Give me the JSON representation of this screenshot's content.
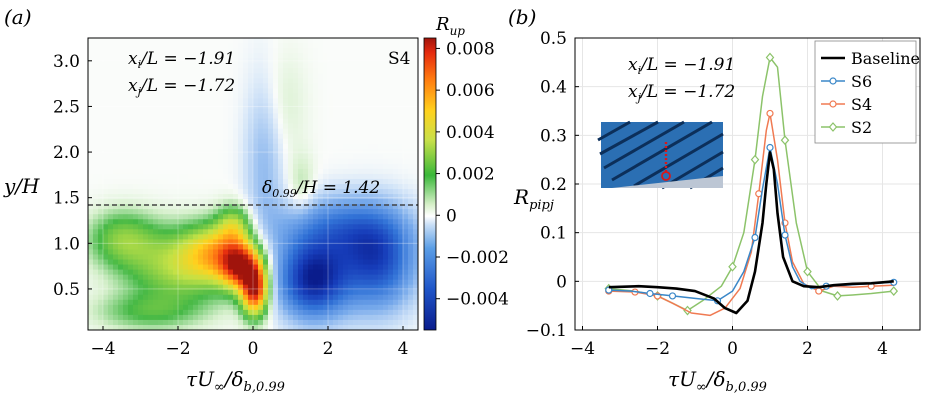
{
  "chart_data": [
    {
      "type": "heatmap",
      "panel_label": "(a)",
      "colorbar_title": "R",
      "colorbar_title_sub": "up",
      "colorbar_ticks": [
        "0.008",
        "0.006",
        "0.004",
        "0.002",
        "0",
        "−0.002",
        "−0.004"
      ],
      "colorbar_tick_values": [
        0.008,
        0.006,
        0.004,
        0.002,
        0,
        -0.002,
        -0.004
      ],
      "colorbar_range": [
        -0.0055,
        0.0085
      ],
      "xlabel": "τU∞/δb,0.99",
      "ylabel": "y/H",
      "xlim": [
        -4.4,
        4.4
      ],
      "ylim": [
        0.05,
        3.25
      ],
      "x_ticks": [
        "−4",
        "−2",
        "0",
        "2",
        "4"
      ],
      "x_tick_values": [
        -4,
        -2,
        0,
        2,
        4
      ],
      "y_ticks": [
        "0.5",
        "1.0",
        "1.5",
        "2.0",
        "2.5",
        "3.0"
      ],
      "y_tick_values": [
        0.5,
        1.0,
        1.5,
        2.0,
        2.5,
        3.0
      ],
      "annotations": {
        "xi_line": "x_i/L = −1.91",
        "xj_line": "x_j/L = −1.72",
        "case": "S4",
        "delta_line": "δ_0.99/H = 1.42"
      },
      "delta_level": 1.42,
      "field_features": [
        {
          "x": 0.05,
          "y": 0.5,
          "value": 0.0078,
          "sx": 0.35,
          "sy": 0.28
        },
        {
          "x": -0.35,
          "y": 0.75,
          "value": 0.006,
          "sx": 0.5,
          "sy": 0.25
        },
        {
          "x": -0.9,
          "y": 0.9,
          "value": 0.004,
          "sx": 0.9,
          "sy": 0.3
        },
        {
          "x": -2.0,
          "y": 0.75,
          "value": 0.0028,
          "sx": 1.4,
          "sy": 0.4
        },
        {
          "x": -3.5,
          "y": 1.05,
          "value": 0.0022,
          "sx": 0.9,
          "sy": 0.3
        },
        {
          "x": -0.5,
          "y": 1.2,
          "value": 0.0025,
          "sx": 0.45,
          "sy": 0.22
        },
        {
          "x": -2.8,
          "y": 0.25,
          "value": 0.0015,
          "sx": 1.4,
          "sy": 0.2
        },
        {
          "x": 1.6,
          "y": 0.6,
          "value": -0.0052,
          "sx": 0.9,
          "sy": 0.4
        },
        {
          "x": 3.3,
          "y": 0.8,
          "value": -0.004,
          "sx": 1.0,
          "sy": 0.5
        },
        {
          "x": 2.2,
          "y": 1.15,
          "value": -0.0025,
          "sx": 1.6,
          "sy": 0.35
        },
        {
          "x": 0.3,
          "y": 1.9,
          "value": -0.0012,
          "sx": 0.5,
          "sy": 0.9
        },
        {
          "x": 1.3,
          "y": 1.6,
          "value": 0.0008,
          "sx": 0.35,
          "sy": 0.35
        },
        {
          "x": 0.8,
          "y": 2.5,
          "value": 0.0005,
          "sx": 0.6,
          "sy": 0.6
        }
      ]
    },
    {
      "type": "line",
      "panel_label": "(b)",
      "xlabel": "τU∞/δb,0.99",
      "ylabel": "R",
      "ylabel_sub": "pipj",
      "xlim": [
        -4.2,
        5.0
      ],
      "ylim": [
        -0.1,
        0.5
      ],
      "x_ticks": [
        "−4",
        "−2",
        "0",
        "2",
        "4"
      ],
      "x_tick_values": [
        -4,
        -2,
        0,
        2,
        4
      ],
      "y_ticks": [
        "−0.1",
        "0",
        "0.1",
        "0.2",
        "0.3",
        "0.4",
        "0.5"
      ],
      "y_tick_values": [
        -0.1,
        0,
        0.1,
        0.2,
        0.3,
        0.4,
        0.5
      ],
      "annotations": {
        "xi_line": "x_i/L = −1.91",
        "xj_line": "x_j/L = −1.72"
      },
      "series": [
        {
          "name": "Baseline",
          "color": "#000000",
          "marker": "none",
          "x": [
            -3.3,
            -2.5,
            -2.0,
            -1.5,
            -1.0,
            -0.5,
            -0.2,
            0.1,
            0.4,
            0.6,
            0.8,
            0.9,
            1.0,
            1.1,
            1.2,
            1.35,
            1.6,
            1.9,
            2.3,
            2.7,
            3.2,
            3.7,
            4.3
          ],
          "y": [
            -0.012,
            -0.01,
            -0.012,
            -0.015,
            -0.02,
            -0.035,
            -0.055,
            -0.065,
            -0.04,
            0.02,
            0.12,
            0.2,
            0.265,
            0.23,
            0.14,
            0.05,
            0.0,
            -0.01,
            -0.012,
            -0.008,
            -0.005,
            -0.004,
            0.0
          ]
        },
        {
          "name": "S6",
          "color": "#3a87c8",
          "marker": "circle",
          "x": [
            -3.3,
            -2.7,
            -2.2,
            -1.6,
            -1.0,
            -0.4,
            0.0,
            0.3,
            0.6,
            0.8,
            1.0,
            1.2,
            1.4,
            1.6,
            1.8,
            2.1,
            2.5,
            3.0,
            3.6,
            4.3
          ],
          "y": [
            -0.018,
            -0.02,
            -0.025,
            -0.03,
            -0.035,
            -0.04,
            -0.02,
            0.02,
            0.09,
            0.19,
            0.275,
            0.2,
            0.095,
            0.03,
            0.0,
            -0.015,
            -0.01,
            -0.008,
            -0.005,
            -0.002
          ],
          "marker_x": [
            -3.3,
            -2.2,
            -1.6,
            -0.4,
            0.6,
            1.0,
            1.4,
            2.5,
            4.3
          ],
          "marker_y": [
            -0.018,
            -0.025,
            -0.03,
            -0.04,
            0.09,
            0.275,
            0.095,
            -0.01,
            -0.002
          ]
        },
        {
          "name": "S4",
          "color": "#f07a52",
          "marker": "circle",
          "x": [
            -3.3,
            -2.6,
            -2.0,
            -1.6,
            -1.1,
            -0.6,
            -0.2,
            0.2,
            0.5,
            0.7,
            0.9,
            1.0,
            1.2,
            1.4,
            1.6,
            1.9,
            2.3,
            2.7,
            3.2,
            3.7,
            4.3
          ],
          "y": [
            -0.02,
            -0.022,
            -0.03,
            -0.045,
            -0.065,
            -0.07,
            -0.055,
            -0.015,
            0.06,
            0.18,
            0.31,
            0.345,
            0.25,
            0.12,
            0.04,
            -0.005,
            -0.02,
            -0.01,
            -0.012,
            -0.01,
            -0.008
          ],
          "marker_x": [
            -3.3,
            -2.6,
            -2.0,
            0.7,
            1.0,
            1.4,
            2.3,
            3.7
          ],
          "marker_y": [
            -0.02,
            -0.022,
            -0.03,
            0.18,
            0.345,
            0.12,
            -0.02,
            -0.01
          ]
        },
        {
          "name": "S2",
          "color": "#8cc36a",
          "marker": "diamond",
          "x": [
            -3.3,
            -2.6,
            -2.0,
            -1.6,
            -1.2,
            -0.8,
            -0.3,
            0.0,
            0.3,
            0.6,
            0.8,
            1.0,
            1.2,
            1.4,
            1.7,
            2.0,
            2.4,
            2.8,
            3.2,
            3.7,
            4.3
          ],
          "y": [
            -0.015,
            -0.02,
            -0.03,
            -0.045,
            -0.06,
            -0.04,
            -0.01,
            0.03,
            0.1,
            0.25,
            0.38,
            0.46,
            0.44,
            0.29,
            0.12,
            0.02,
            -0.02,
            -0.03,
            -0.028,
            -0.025,
            -0.02
          ],
          "marker_x": [
            -3.3,
            -2.0,
            -1.2,
            0.0,
            0.6,
            1.0,
            1.4,
            2.0,
            2.8,
            4.3
          ],
          "marker_y": [
            -0.015,
            -0.03,
            -0.06,
            0.03,
            0.25,
            0.46,
            0.29,
            0.02,
            -0.03,
            -0.02
          ]
        }
      ],
      "legend_position": "top-right"
    }
  ]
}
